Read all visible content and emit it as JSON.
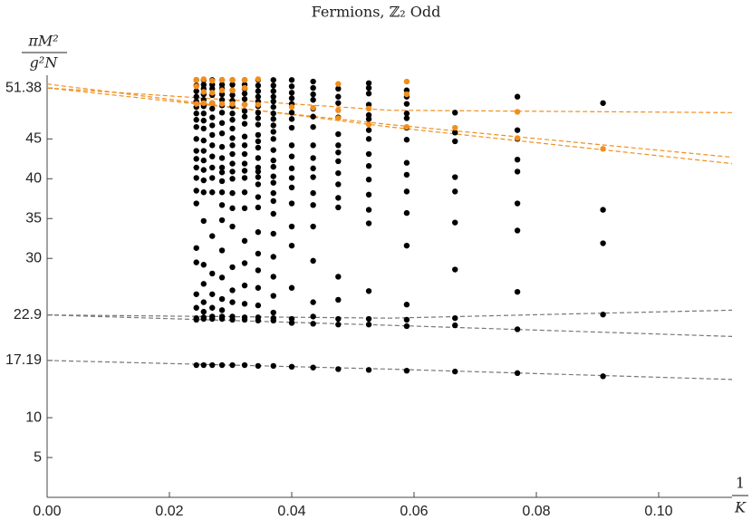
{
  "chart_data": {
    "type": "scatter",
    "title": "Fermions, ℤ₂ Odd",
    "ylabel": {
      "numerator": "πM²",
      "denominator": "g²N"
    },
    "xlabel": {
      "numerator": "1",
      "denominator": "K"
    },
    "xlim": [
      0,
      0.112
    ],
    "ylim": [
      0,
      53
    ],
    "xticks": [
      {
        "value": 0,
        "label": "0.00"
      },
      {
        "value": 0.02,
        "label": "0.02"
      },
      {
        "value": 0.04,
        "label": "0.04"
      },
      {
        "value": 0.06,
        "label": "0.06"
      },
      {
        "value": 0.08,
        "label": "0.08"
      },
      {
        "value": 0.1,
        "label": "0.10"
      }
    ],
    "yticks": [
      5,
      10,
      17.19,
      22.9,
      30,
      35,
      40,
      45,
      51.38
    ],
    "series": [
      {
        "x": 0.0909,
        "color": "#000000",
        "values": [
          49.5,
          36.1,
          31.9,
          22.95,
          15.2
        ]
      },
      {
        "x": 0.0909,
        "color": "#f28e1c",
        "values": [
          43.75
        ]
      },
      {
        "x": 0.0769,
        "color": "#000000",
        "values": [
          50.3,
          46.1,
          45.0,
          42.4,
          40.9,
          36.9,
          33.5,
          25.8,
          21.1,
          15.6
        ]
      },
      {
        "x": 0.0769,
        "color": "#f28e1c",
        "values": [
          48.4,
          45.1
        ]
      },
      {
        "x": 0.0667,
        "color": "#000000",
        "values": [
          48.3,
          45.8,
          44.7,
          40.2,
          38.4,
          34.5,
          28.6,
          22.5,
          21.6,
          15.8
        ]
      },
      {
        "x": 0.0667,
        "color": "#f28e1c",
        "values": [
          46.4
        ]
      },
      {
        "x": 0.0588,
        "color": "#000000",
        "values": [
          51.1,
          50.3,
          49.4,
          48.2,
          47.6,
          46.4,
          44.9,
          42.0,
          40.5,
          38.4,
          35.7,
          31.6,
          24.2,
          22.3,
          21.5,
          15.9
        ]
      },
      {
        "x": 0.0588,
        "color": "#f28e1c",
        "values": [
          52.2,
          50.6,
          46.5
        ]
      },
      {
        "x": 0.0526,
        "color": "#000000",
        "values": [
          52.0,
          51.4,
          50.7,
          49.3,
          48.0,
          47.5,
          46.1,
          45.0,
          43.1,
          41.6,
          39.9,
          38.0,
          36.1,
          34.4,
          25.9,
          22.4,
          21.7,
          16.0
        ]
      },
      {
        "x": 0.0526,
        "color": "#f28e1c",
        "values": [
          48.8,
          46.8
        ]
      },
      {
        "x": 0.0476,
        "color": "#000000",
        "values": [
          51.3,
          50.3,
          49.5,
          47.7,
          45.6,
          44.2,
          43.3,
          42.2,
          40.7,
          39.3,
          37.6,
          36.4,
          27.7,
          24.8,
          22.4,
          21.7,
          16.1
        ]
      },
      {
        "x": 0.0476,
        "color": "#f28e1c",
        "values": [
          51.9,
          48.6,
          47.6
        ]
      },
      {
        "x": 0.0435,
        "color": "#000000",
        "values": [
          52.2,
          51.4,
          50.6,
          49.9,
          48.8,
          47.8,
          46.5,
          44.2,
          42.6,
          41.3,
          40.2,
          38.2,
          36.7,
          34.0,
          29.7,
          24.5,
          22.7,
          21.8,
          16.3
        ]
      },
      {
        "x": 0.0435,
        "color": "#f28e1c",
        "values": [
          48.9
        ]
      },
      {
        "x": 0.04,
        "color": "#000000",
        "values": [
          52.4,
          51.6,
          50.8,
          50.1,
          49.4,
          48.3,
          47.5,
          46.4,
          44.2,
          42.8,
          41.3,
          40.1,
          38.9,
          36.9,
          34.0,
          31.6,
          26.3,
          22.4,
          21.9,
          16.4
        ]
      },
      {
        "x": 0.04,
        "color": "#f28e1c",
        "values": [
          49.0
        ]
      },
      {
        "x": 0.037,
        "color": "#000000",
        "values": [
          52.4,
          51.7,
          51.0,
          50.3,
          49.7,
          49.0,
          48.2,
          47.5,
          46.7,
          45.9,
          45.0,
          43.6,
          42.3,
          41.5,
          40.3,
          39.5,
          38.2,
          37.2,
          35.6,
          33.1,
          30.2,
          27.7,
          25.3,
          23.2,
          22.5,
          22.2,
          16.5
        ]
      },
      {
        "x": 0.0345,
        "color": "#000000",
        "values": [
          52.4,
          51.7,
          51.0,
          50.3,
          49.7,
          49.1,
          48.3,
          47.6,
          46.8,
          45.5,
          44.7,
          43.9,
          42.6,
          41.4,
          40.9,
          40.2,
          39.3,
          37.7,
          36.4,
          33.3,
          30.6,
          28.5,
          26.3,
          24.1,
          22.6,
          22.2,
          16.5
        ]
      },
      {
        "x": 0.0345,
        "color": "#f28e1c",
        "values": [
          52.5,
          49.3
        ]
      },
      {
        "x": 0.0323,
        "color": "#000000",
        "values": [
          52.4,
          51.8,
          51.3,
          50.7,
          50.0,
          49.3,
          48.5,
          47.8,
          46.9,
          45.3,
          44.2,
          43.1,
          41.9,
          41.0,
          40.1,
          38.3,
          36.3,
          32.2,
          29.4,
          26.6,
          24.3,
          22.6,
          22.3,
          16.6
        ]
      },
      {
        "x": 0.0323,
        "color": "#f28e1c",
        "values": [
          52.4,
          51.4,
          49.3
        ]
      },
      {
        "x": 0.0303,
        "color": "#000000",
        "values": [
          52.4,
          51.8,
          51.1,
          50.5,
          49.8,
          49.1,
          48.2,
          47.4,
          46.3,
          45.1,
          44.2,
          43.1,
          41.9,
          40.9,
          40.0,
          38.2,
          36.3,
          34.0,
          28.9,
          26.0,
          24.5,
          22.7,
          22.3,
          16.6
        ]
      },
      {
        "x": 0.0303,
        "color": "#f28e1c",
        "values": [
          52.4,
          51.1,
          49.4
        ]
      },
      {
        "x": 0.0286,
        "color": "#000000",
        "values": [
          52.4,
          51.8,
          51.3,
          50.6,
          49.9,
          49.2,
          48.3,
          47.0,
          45.7,
          44.0,
          42.6,
          41.4,
          40.8,
          39.7,
          38.3,
          36.7,
          34.8,
          31.0,
          27.6,
          24.9,
          23.5,
          22.7,
          22.4,
          16.6
        ]
      },
      {
        "x": 0.0286,
        "color": "#f28e1c",
        "values": [
          52.4,
          51.1,
          49.4
        ]
      },
      {
        "x": 0.027,
        "color": "#000000",
        "values": [
          52.4,
          51.8,
          51.3,
          50.5,
          49.5,
          48.8,
          47.7,
          46.7,
          45.5,
          44.2,
          42.8,
          41.4,
          40.1,
          38.3,
          32.8,
          28.1,
          25.5,
          23.8,
          22.7,
          22.4,
          16.6
        ]
      },
      {
        "x": 0.027,
        "color": "#f28e1c",
        "values": [
          52.3,
          50.8,
          49.5
        ]
      },
      {
        "x": 0.0256,
        "color": "#000000",
        "values": [
          52.4,
          51.8,
          51.3,
          50.6,
          49.9,
          49.1,
          48.2,
          47.3,
          46.3,
          44.8,
          43.5,
          42.3,
          41.1,
          39.8,
          38.3,
          34.7,
          29.2,
          26.8,
          24.5,
          23.3,
          22.6,
          22.4,
          16.6
        ]
      },
      {
        "x": 0.0256,
        "color": "#f28e1c",
        "values": [
          52.5,
          50.9,
          49.5
        ]
      },
      {
        "x": 0.0244,
        "color": "#000000",
        "values": [
          52.4,
          51.7,
          51.0,
          50.3,
          49.7,
          49.0,
          48.2,
          47.4,
          46.5,
          45.0,
          43.5,
          42.5,
          41.4,
          40.1,
          38.5,
          36.9,
          31.3,
          29.5,
          25.5,
          23.8,
          22.5,
          22.3,
          16.6
        ]
      },
      {
        "x": 0.0244,
        "color": "#f28e1c",
        "values": [
          52.4,
          51.6,
          49.4
        ]
      }
    ],
    "fit_lines": [
      {
        "color": "#777777",
        "x": [
          0,
          0.056,
          0.112
        ],
        "values": [
          22.9,
          21.6,
          20.2
        ]
      },
      {
        "color": "#777777",
        "x": [
          0,
          0.056,
          0.112
        ],
        "values": [
          22.9,
          22.5,
          23.5
        ]
      },
      {
        "color": "#777777",
        "x": [
          0,
          0.056,
          0.112
        ],
        "values": [
          17.19,
          16.1,
          14.8
        ]
      },
      {
        "color": "#f28e1c",
        "x": [
          0,
          0.056,
          0.112
        ],
        "values": [
          51.4,
          48.6,
          48.3
        ]
      },
      {
        "color": "#f28e1c",
        "x": [
          0,
          0.056,
          0.112
        ],
        "values": [
          51.4,
          46.8,
          42.7
        ]
      },
      {
        "color": "#f28e1c",
        "x": [
          0,
          0.056,
          0.112
        ],
        "values": [
          51.9,
          46.5,
          41.9
        ]
      }
    ],
    "line_style": "dashed"
  }
}
